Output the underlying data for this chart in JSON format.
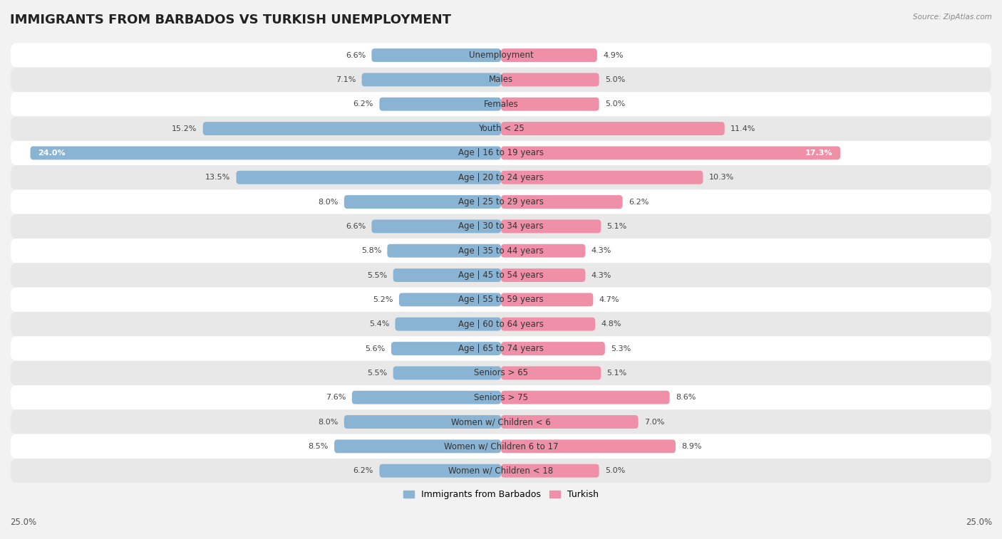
{
  "title": "IMMIGRANTS FROM BARBADOS VS TURKISH UNEMPLOYMENT",
  "source": "Source: ZipAtlas.com",
  "categories": [
    "Unemployment",
    "Males",
    "Females",
    "Youth < 25",
    "Age | 16 to 19 years",
    "Age | 20 to 24 years",
    "Age | 25 to 29 years",
    "Age | 30 to 34 years",
    "Age | 35 to 44 years",
    "Age | 45 to 54 years",
    "Age | 55 to 59 years",
    "Age | 60 to 64 years",
    "Age | 65 to 74 years",
    "Seniors > 65",
    "Seniors > 75",
    "Women w/ Children < 6",
    "Women w/ Children 6 to 17",
    "Women w/ Children < 18"
  ],
  "left_values": [
    6.6,
    7.1,
    6.2,
    15.2,
    24.0,
    13.5,
    8.0,
    6.6,
    5.8,
    5.5,
    5.2,
    5.4,
    5.6,
    5.5,
    7.6,
    8.0,
    8.5,
    6.2
  ],
  "right_values": [
    4.9,
    5.0,
    5.0,
    11.4,
    17.3,
    10.3,
    6.2,
    5.1,
    4.3,
    4.3,
    4.7,
    4.8,
    5.3,
    5.1,
    8.6,
    7.0,
    8.9,
    5.0
  ],
  "left_color": "#8ab4d4",
  "right_color": "#f090a8",
  "left_label": "Immigrants from Barbados",
  "right_label": "Turkish",
  "axis_limit": 25.0,
  "bar_height": 0.55,
  "bg_color": "#f2f2f2",
  "row_odd_color": "#ffffff",
  "row_even_color": "#e8e8e8",
  "title_fontsize": 13,
  "label_fontsize": 8.5,
  "value_fontsize": 8.0
}
